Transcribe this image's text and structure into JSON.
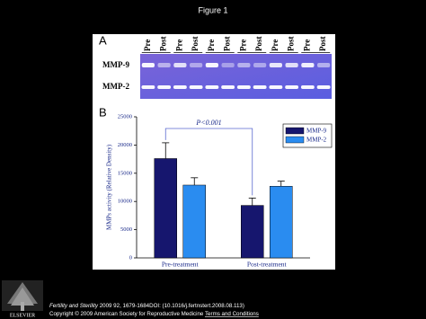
{
  "header": {
    "title": "Figure 1"
  },
  "panel_a": {
    "label": "A",
    "lanes": [
      "Pre",
      "Post",
      "Pre",
      "Post",
      "Pre",
      "Post",
      "Pre",
      "Post",
      "Pre",
      "Post",
      "Pre",
      "Post"
    ],
    "rows": [
      "MMP-9",
      "MMP-2"
    ]
  },
  "panel_b": {
    "label": "B"
  },
  "chart_data": {
    "type": "bar",
    "y_label": "MMPs activity (Relative Density)",
    "categories": [
      "Pre-treatment",
      "Post-treatment"
    ],
    "series": [
      {
        "name": "MMP-9",
        "color": "#16166e",
        "values": [
          17600,
          9300
        ],
        "errors": [
          2800,
          1300
        ]
      },
      {
        "name": "MMP-2",
        "color": "#2a8cf0",
        "values": [
          12900,
          12700
        ],
        "errors": [
          1300,
          900
        ]
      }
    ],
    "ylim": [
      0,
      25000
    ],
    "yticks": [
      0,
      5000,
      10000,
      15000,
      20000,
      25000
    ],
    "annotation": "P<0.001",
    "legend": "upper right"
  },
  "footer": {
    "journal": "Fertility and Sterility",
    "citation": " 2009 92, 1679-1684DOI: (10.1016/j.fertnstert.2008.08.113)",
    "copyright": "Copyright © 2009 American Society for Reproductive Medicine ",
    "terms": "Terms and Conditions",
    "logo": "ELSEVIER"
  }
}
